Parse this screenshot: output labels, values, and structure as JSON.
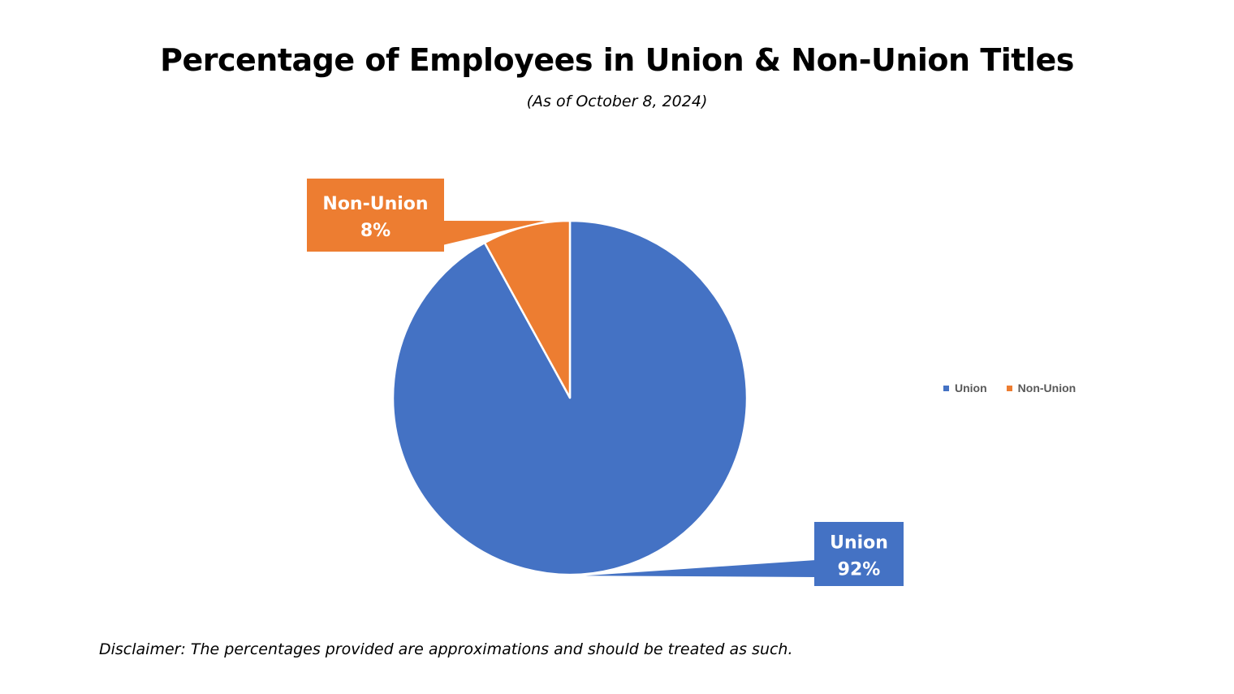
{
  "title": "Percentage of Employees in Union & Non-Union Titles",
  "subtitle": "(As of October 8, 2024)",
  "disclaimer": "Disclaimer: The percentages provided are approximations and should be treated as such.",
  "chart_data": {
    "type": "pie",
    "title": "Percentage of Employees in Union & Non-Union Titles",
    "subtitle": "(As of October 8, 2024)",
    "categories": [
      "Union",
      "Non-Union"
    ],
    "values": [
      92,
      8
    ],
    "unit": "%",
    "colors": [
      "#4472C4",
      "#ED7D31"
    ],
    "data_labels": [
      {
        "category": "Union",
        "value_text": "92%"
      },
      {
        "category": "Non-Union",
        "value_text": "8%"
      }
    ],
    "legend": {
      "placement": "right",
      "entries": [
        "Union",
        "Non-Union"
      ]
    },
    "start_angle": "12 o'clock, clockwise"
  }
}
